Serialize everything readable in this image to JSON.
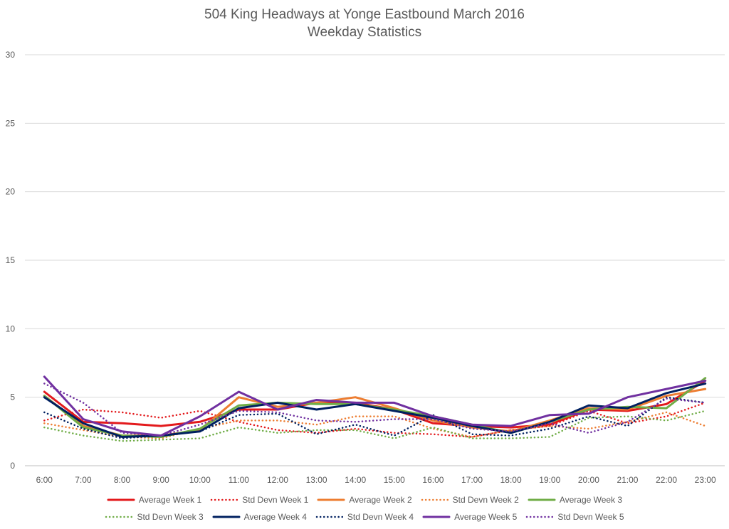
{
  "chart_data": {
    "type": "line",
    "title": "504 King Headways at Yonge Eastbound March 2016",
    "subtitle": "Weekday Statistics",
    "xlabel": "",
    "ylabel": "",
    "ylim": [
      0,
      30
    ],
    "yticks": [
      "0",
      "5",
      "10",
      "15",
      "20",
      "25",
      "30"
    ],
    "grid": true,
    "legend_position": "bottom",
    "categories": [
      "6:00",
      "7:00",
      "8:00",
      "9:00",
      "10:00",
      "11:00",
      "12:00",
      "13:00",
      "14:00",
      "15:00",
      "16:00",
      "17:00",
      "18:00",
      "19:00",
      "20:00",
      "21:00",
      "22:00",
      "23:00"
    ],
    "series": [
      {
        "name": "Average Week 1",
        "color": "#e31a1c",
        "style": "solid",
        "values": [
          5.4,
          3.2,
          3.1,
          2.9,
          3.2,
          4.1,
          4.1,
          4.6,
          4.6,
          4.1,
          3.1,
          2.9,
          2.8,
          3.0,
          4.1,
          4.0,
          4.5,
          6.2
        ]
      },
      {
        "name": "Std Devn Week 1",
        "color": "#e31a1c",
        "style": "dotted",
        "values": [
          3.3,
          4.1,
          3.9,
          3.5,
          4.0,
          3.2,
          2.6,
          2.4,
          2.7,
          2.4,
          2.3,
          2.1,
          2.6,
          2.9,
          4.0,
          3.1,
          3.6,
          4.6
        ]
      },
      {
        "name": "Average Week 2",
        "color": "#ed7d31",
        "style": "solid",
        "values": [
          5.1,
          2.9,
          2.2,
          2.2,
          2.6,
          5.0,
          4.3,
          4.6,
          5.0,
          4.2,
          3.3,
          2.8,
          2.5,
          3.3,
          4.2,
          4.1,
          5.1,
          5.6
        ]
      },
      {
        "name": "Std Devn Week 2",
        "color": "#ed7d31",
        "style": "dotted",
        "values": [
          3.1,
          2.6,
          2.1,
          2.0,
          2.7,
          3.3,
          3.3,
          3.0,
          3.6,
          3.6,
          2.7,
          2.1,
          2.6,
          2.9,
          2.7,
          3.2,
          3.9,
          2.9
        ]
      },
      {
        "name": "Average Week 3",
        "color": "#70ad47",
        "style": "solid",
        "values": [
          5.1,
          2.8,
          2.2,
          2.1,
          2.7,
          4.4,
          4.6,
          4.5,
          4.5,
          4.1,
          3.6,
          3.0,
          2.4,
          3.2,
          4.1,
          4.3,
          4.2,
          6.4
        ]
      },
      {
        "name": "Std Devn Week 3",
        "color": "#70ad47",
        "style": "dotted",
        "values": [
          2.8,
          2.2,
          1.8,
          1.9,
          2.0,
          2.8,
          2.4,
          2.6,
          2.6,
          2.0,
          2.8,
          2.0,
          2.0,
          2.1,
          3.5,
          3.6,
          3.3,
          4.0
        ]
      },
      {
        "name": "Average Week 4",
        "color": "#002060",
        "style": "solid",
        "values": [
          5.0,
          3.1,
          2.1,
          2.2,
          2.5,
          4.2,
          4.6,
          4.1,
          4.5,
          4.0,
          3.5,
          2.9,
          2.4,
          3.2,
          4.4,
          4.2,
          5.3,
          6.0
        ]
      },
      {
        "name": "Std Devn Week 4",
        "color": "#002060",
        "style": "dotted",
        "values": [
          3.9,
          2.7,
          2.0,
          2.2,
          2.5,
          3.7,
          3.8,
          2.3,
          3.0,
          2.2,
          3.7,
          2.3,
          2.2,
          2.7,
          3.6,
          2.9,
          5.0,
          4.6
        ]
      },
      {
        "name": "Average Week 5",
        "color": "#7030a0",
        "style": "solid",
        "values": [
          6.5,
          3.4,
          2.5,
          2.2,
          3.6,
          5.4,
          4.1,
          4.8,
          4.6,
          4.6,
          3.6,
          3.0,
          2.9,
          3.7,
          3.8,
          5.0,
          5.6,
          6.2
        ]
      },
      {
        "name": "Std Devn Week 5",
        "color": "#7030a0",
        "style": "dotted",
        "values": [
          6.0,
          4.6,
          2.4,
          2.2,
          3.0,
          4.0,
          3.9,
          3.3,
          3.2,
          3.4,
          3.4,
          2.7,
          2.5,
          3.1,
          2.4,
          3.2,
          4.9,
          4.6
        ]
      }
    ]
  }
}
